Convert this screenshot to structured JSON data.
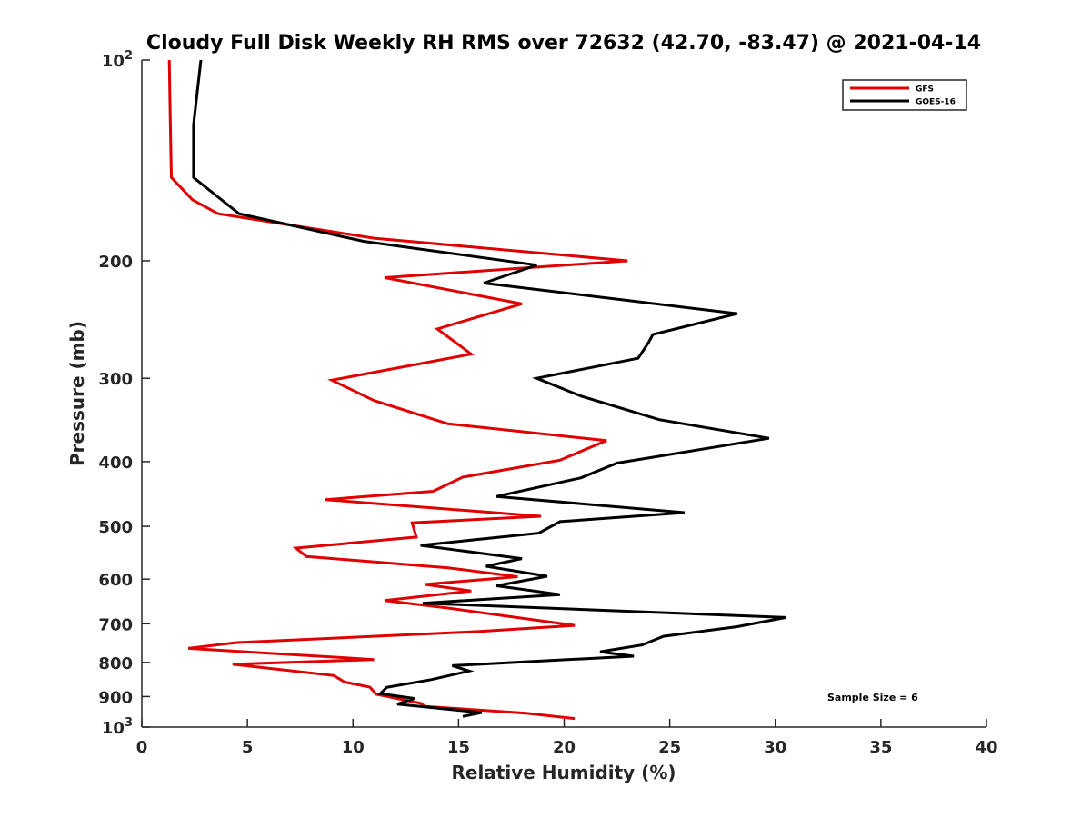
{
  "chart_data": {
    "type": "line",
    "title": "Cloudy Full Disk Weekly RH RMS over 72632 (42.70, -83.47) @ 2021-04-14",
    "xlabel": "Relative Humidity (%)",
    "ylabel": "Pressure (mb)",
    "xlim": [
      0,
      40
    ],
    "ylim": [
      100,
      1000
    ],
    "y_scale": "log",
    "y_reversed": true,
    "grid": false,
    "legend_position": "top-right",
    "x_ticks": [
      0,
      5,
      10,
      15,
      20,
      25,
      30,
      35,
      40
    ],
    "x_tick_labels": [
      "0",
      "5",
      "10",
      "15",
      "20",
      "25",
      "30",
      "35",
      "40"
    ],
    "y_ticks": [
      100,
      200,
      300,
      400,
      500,
      600,
      700,
      800,
      900,
      1000
    ],
    "y_tick_labels": [
      {
        "base": "10",
        "exp": "2"
      },
      {
        "base": "200"
      },
      {
        "base": "300"
      },
      {
        "base": "400"
      },
      {
        "base": "500"
      },
      {
        "base": "600"
      },
      {
        "base": "700"
      },
      {
        "base": "800"
      },
      {
        "base": "900"
      },
      {
        "base": "10",
        "exp": "3"
      }
    ],
    "annotation": "Sample Size = 6",
    "series": [
      {
        "name": "GFS",
        "color": "#e00000",
        "points": [
          [
            1.3,
            100
          ],
          [
            1.35,
            125
          ],
          [
            1.4,
            150
          ],
          [
            2.4,
            162
          ],
          [
            3.6,
            170
          ],
          [
            11.0,
            185
          ],
          [
            23.0,
            200
          ],
          [
            11.5,
            212
          ],
          [
            18.0,
            232
          ],
          [
            14.0,
            253
          ],
          [
            15.6,
            276
          ],
          [
            9.0,
            302
          ],
          [
            11.0,
            324
          ],
          [
            14.5,
            351
          ],
          [
            22.0,
            372
          ],
          [
            19.8,
            398
          ],
          [
            15.2,
            422
          ],
          [
            13.8,
            443
          ],
          [
            8.7,
            456
          ],
          [
            18.9,
            483
          ],
          [
            12.8,
            494
          ],
          [
            13.0,
            519
          ],
          [
            7.3,
            539
          ],
          [
            7.8,
            555
          ],
          [
            14.5,
            577
          ],
          [
            17.8,
            595
          ],
          [
            13.4,
            611
          ],
          [
            15.6,
            625
          ],
          [
            11.5,
            646
          ],
          [
            14.5,
            663
          ],
          [
            20.5,
            704
          ],
          [
            16.0,
            719
          ],
          [
            4.5,
            747
          ],
          [
            2.2,
            762
          ],
          [
            11.0,
            792
          ],
          [
            4.3,
            805
          ],
          [
            9.1,
            837
          ],
          [
            9.6,
            856
          ],
          [
            10.8,
            871
          ],
          [
            11.1,
            893
          ],
          [
            13.2,
            921
          ],
          [
            13.4,
            931
          ],
          [
            18.2,
            953
          ],
          [
            20.5,
            971
          ]
        ]
      },
      {
        "name": "GOES-16",
        "color": "#000000",
        "points": [
          [
            2.8,
            100
          ],
          [
            2.45,
            125
          ],
          [
            2.45,
            150
          ],
          [
            4.6,
            170
          ],
          [
            10.5,
            187
          ],
          [
            18.7,
            203
          ],
          [
            16.2,
            216
          ],
          [
            28.2,
            240
          ],
          [
            24.2,
            258
          ],
          [
            24.0,
            265
          ],
          [
            23.5,
            280
          ],
          [
            18.7,
            300
          ],
          [
            20.8,
            319
          ],
          [
            24.5,
            346
          ],
          [
            29.7,
            369
          ],
          [
            22.5,
            402
          ],
          [
            20.8,
            423
          ],
          [
            16.8,
            451
          ],
          [
            25.7,
            477
          ],
          [
            19.8,
            492
          ],
          [
            18.8,
            512
          ],
          [
            13.2,
            534
          ],
          [
            18.0,
            559
          ],
          [
            16.3,
            574
          ],
          [
            19.2,
            594
          ],
          [
            16.8,
            614
          ],
          [
            19.8,
            633
          ],
          [
            13.3,
            652
          ],
          [
            30.5,
            685
          ],
          [
            28.2,
            707
          ],
          [
            24.7,
            731
          ],
          [
            23.7,
            753
          ],
          [
            21.7,
            771
          ],
          [
            23.3,
            783
          ],
          [
            14.7,
            809
          ],
          [
            15.5,
            824
          ],
          [
            13.7,
            849
          ],
          [
            11.6,
            872
          ],
          [
            11.3,
            891
          ],
          [
            12.9,
            906
          ],
          [
            12.1,
            924
          ],
          [
            16.1,
            951
          ],
          [
            15.2,
            964
          ]
        ]
      }
    ]
  }
}
